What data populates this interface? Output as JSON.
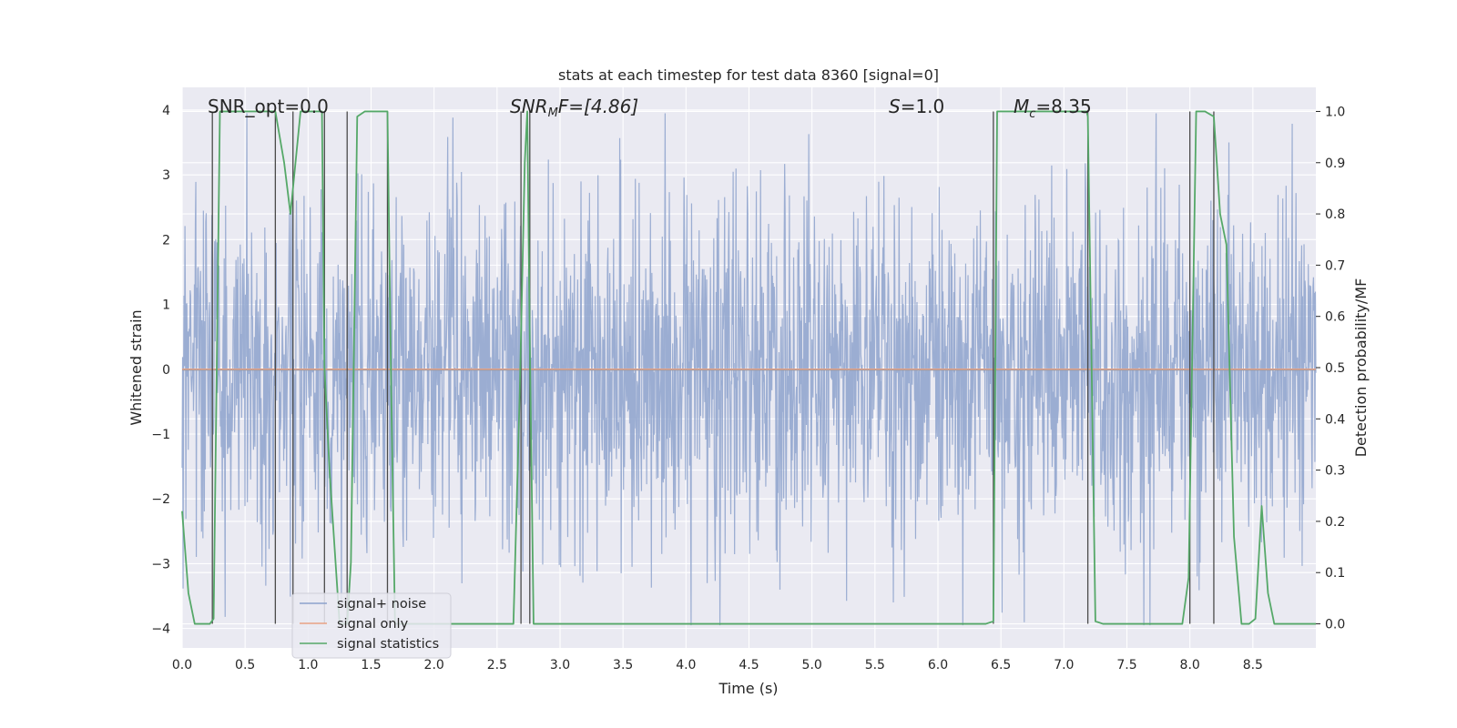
{
  "chart_data": {
    "type": "line",
    "title": "stats at each timestep for test data 8360 [signal=0]",
    "xlabel": "Time (s)",
    "ylabel": "Whitened strain",
    "y2label": "Detection probability/MF",
    "xlim": [
      0.0,
      9.0
    ],
    "ylim": [
      -4.3,
      4.35
    ],
    "y2lim": [
      -0.047,
      1.047
    ],
    "xticks": [
      "0.0",
      "0.5",
      "1.0",
      "1.5",
      "2.0",
      "2.5",
      "3.0",
      "3.5",
      "4.0",
      "4.5",
      "5.0",
      "5.5",
      "6.0",
      "6.5",
      "7.0",
      "7.5",
      "8.0",
      "8.5"
    ],
    "xtick_values": [
      0.0,
      0.5,
      1.0,
      1.5,
      2.0,
      2.5,
      3.0,
      3.5,
      4.0,
      4.5,
      5.0,
      5.5,
      6.0,
      6.5,
      7.0,
      7.5,
      8.0,
      8.5
    ],
    "yticks": [
      "4",
      "3",
      "2",
      "1",
      "0",
      "−1",
      "−2",
      "−3",
      "−4"
    ],
    "ytick_values": [
      4,
      3,
      2,
      1,
      0,
      -1,
      -2,
      -3,
      -4
    ],
    "y2ticks": [
      "1.0",
      "0.9",
      "0.8",
      "0.7",
      "0.6",
      "0.5",
      "0.4",
      "0.3",
      "0.2",
      "0.1",
      "0.0"
    ],
    "y2tick_values": [
      1.0,
      0.9,
      0.8,
      0.7,
      0.6,
      0.5,
      0.4,
      0.3,
      0.2,
      0.1,
      0.0
    ],
    "grid": true,
    "legend": {
      "position": "lower-left",
      "entries": [
        {
          "label": "signal+ noise",
          "color": "#8da2cc"
        },
        {
          "label": "signal only",
          "color": "#e8a183"
        },
        {
          "label": "signal statistics",
          "color": "#55a868"
        }
      ]
    },
    "annotations": {
      "snr_opt": "SNR_opt=0.0",
      "snr_mf_sym": "SNR",
      "snr_mf_sub": "M",
      "snr_mf_rest": "F=[4.86]",
      "s_sym": "S",
      "s_rest": "=1.0",
      "mc_sym": "M",
      "mc_sub": "c",
      "mc_rest": "=8.35"
    },
    "noise": {
      "seed": 8360,
      "n_samples": 2400,
      "amplitude_sigma": 1.35,
      "max_abs": 3.95,
      "color": "#8da2cc"
    },
    "signal_only_value": 0.0,
    "vertical_markers": [
      0.24,
      0.74,
      0.88,
      1.13,
      1.31,
      1.63,
      2.69,
      2.76,
      6.44,
      7.19,
      8.0,
      8.19
    ],
    "vertical_marker_range": [
      0.0,
      1.0
    ],
    "detection_series": {
      "name": "signal statistics",
      "color": "#55a868",
      "x": [
        0.0,
        0.05,
        0.1,
        0.17,
        0.22,
        0.25,
        0.3,
        0.4,
        0.74,
        0.81,
        0.86,
        0.94,
        1.0,
        1.11,
        1.13,
        1.17,
        1.25,
        1.31,
        1.34,
        1.39,
        1.45,
        1.63,
        1.66,
        1.69,
        1.75,
        2.0,
        2.5,
        2.63,
        2.68,
        2.72,
        2.74,
        2.76,
        2.79,
        2.82,
        2.87,
        3.5,
        4.5,
        5.5,
        6.38,
        6.44,
        6.47,
        6.52,
        6.6,
        7.18,
        7.19,
        7.25,
        7.31,
        7.5,
        7.94,
        7.99,
        8.05,
        8.12,
        8.19,
        8.24,
        8.29,
        8.35,
        8.41,
        8.47,
        8.52,
        8.57,
        8.62,
        8.67,
        8.74,
        9.0
      ],
      "values": [
        0.22,
        0.06,
        0.0,
        0.0,
        0.0,
        0.01,
        1.0,
        1.0,
        1.0,
        0.9,
        0.8,
        1.0,
        1.0,
        1.0,
        0.5,
        0.3,
        0.0,
        0.0,
        0.12,
        0.99,
        1.0,
        1.0,
        0.45,
        0.0,
        0.0,
        0.0,
        0.0,
        0.0,
        0.45,
        0.9,
        1.0,
        0.55,
        0.0,
        0.0,
        0.0,
        0.0,
        0.0,
        0.0,
        0.0,
        0.005,
        1.0,
        1.0,
        1.0,
        1.0,
        0.99,
        0.005,
        0.0,
        0.0,
        0.0,
        0.09,
        1.0,
        1.0,
        0.99,
        0.8,
        0.74,
        0.17,
        0.0,
        0.0,
        0.01,
        0.23,
        0.06,
        0.0,
        0.0,
        0.0
      ]
    }
  }
}
